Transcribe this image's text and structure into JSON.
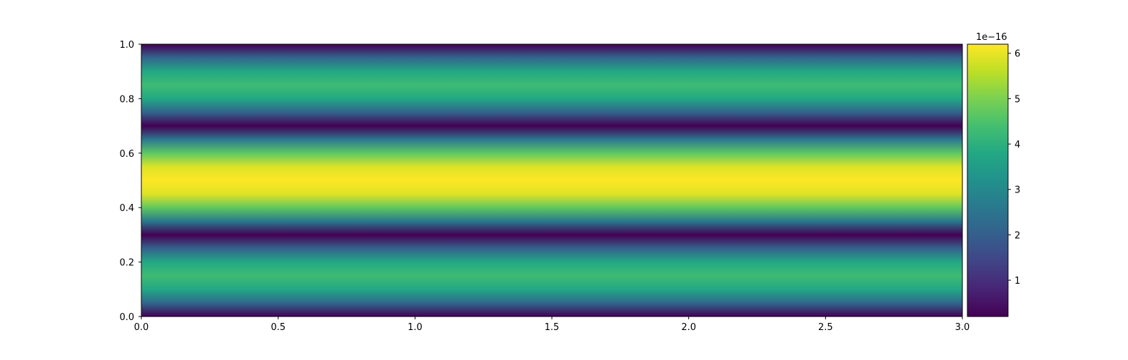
{
  "chart_data": {
    "type": "heatmap",
    "title": "",
    "xlabel": "",
    "ylabel": "",
    "xlim": [
      0.0,
      3.0
    ],
    "ylim": [
      0.0,
      1.0
    ],
    "x_ticks": [
      "0.0",
      "0.5",
      "1.0",
      "1.5",
      "2.0",
      "2.5",
      "3.0"
    ],
    "y_ticks": [
      "0.0",
      "0.2",
      "0.4",
      "0.6",
      "0.8",
      "1.0"
    ],
    "colormap": "viridis",
    "pattern": "constant along x; each column y varies as z(y)",
    "z_profile": {
      "y": [
        0.0,
        0.05,
        0.1,
        0.15,
        0.2,
        0.25,
        0.3,
        0.35,
        0.4,
        0.45,
        0.5,
        0.55,
        0.6,
        0.65,
        0.7,
        0.75,
        0.8,
        0.85,
        0.9,
        0.95,
        1.0
      ],
      "value": [
        0.2,
        2.2,
        3.8,
        4.3,
        3.8,
        2.1,
        0.2,
        2.6,
        4.7,
        5.9,
        6.2,
        5.9,
        4.7,
        2.6,
        0.2,
        2.1,
        3.8,
        4.3,
        3.8,
        2.2,
        0.2
      ]
    },
    "colorbar": {
      "min": 0.2,
      "max": 6.2,
      "ticks": [
        "1",
        "2",
        "3",
        "4",
        "5",
        "6"
      ],
      "exponent_label": "1e−16"
    }
  }
}
